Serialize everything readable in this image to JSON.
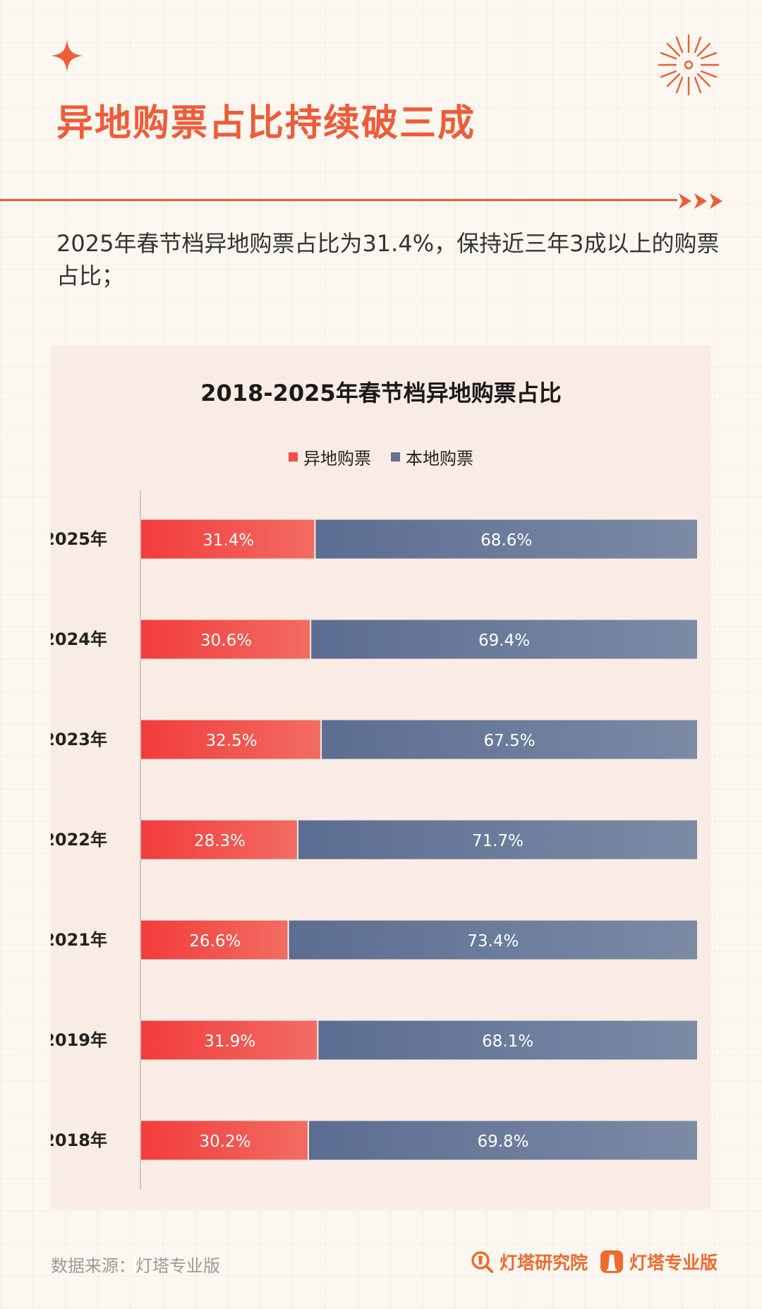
{
  "page": {
    "title": "异地购票占比持续破三成",
    "description": "2025年春节档异地购票占比为31.4%，保持近三年3成以上的购票占比；",
    "source": "数据来源：灯塔专业版",
    "brands": [
      "灯塔研究院",
      "灯塔专业版"
    ],
    "accent_color": "#ee5c3a"
  },
  "chart_data": {
    "type": "bar",
    "orientation": "horizontal",
    "stacked": true,
    "title": "2018-2025年春节档异地购票占比",
    "legend_position": "top-center",
    "categories": [
      "2025年",
      "2024年",
      "2023年",
      "2022年",
      "2021年",
      "2019年",
      "2018年"
    ],
    "series": [
      {
        "name": "异地购票",
        "color": "#f0504a",
        "values": [
          31.4,
          30.6,
          32.5,
          28.3,
          26.6,
          31.9,
          30.2
        ],
        "labels": [
          "31.4%",
          "30.6%",
          "32.5%",
          "28.3%",
          "26.6%",
          "31.9%",
          "30.2%"
        ]
      },
      {
        "name": "本地购票",
        "color": "#627394",
        "values": [
          68.6,
          69.4,
          67.5,
          71.7,
          73.4,
          68.1,
          69.8
        ],
        "labels": [
          "68.6%",
          "69.4%",
          "67.5%",
          "71.7%",
          "73.4%",
          "68.1%",
          "69.8%"
        ]
      }
    ],
    "xlim": [
      0,
      100
    ],
    "grid": false
  }
}
